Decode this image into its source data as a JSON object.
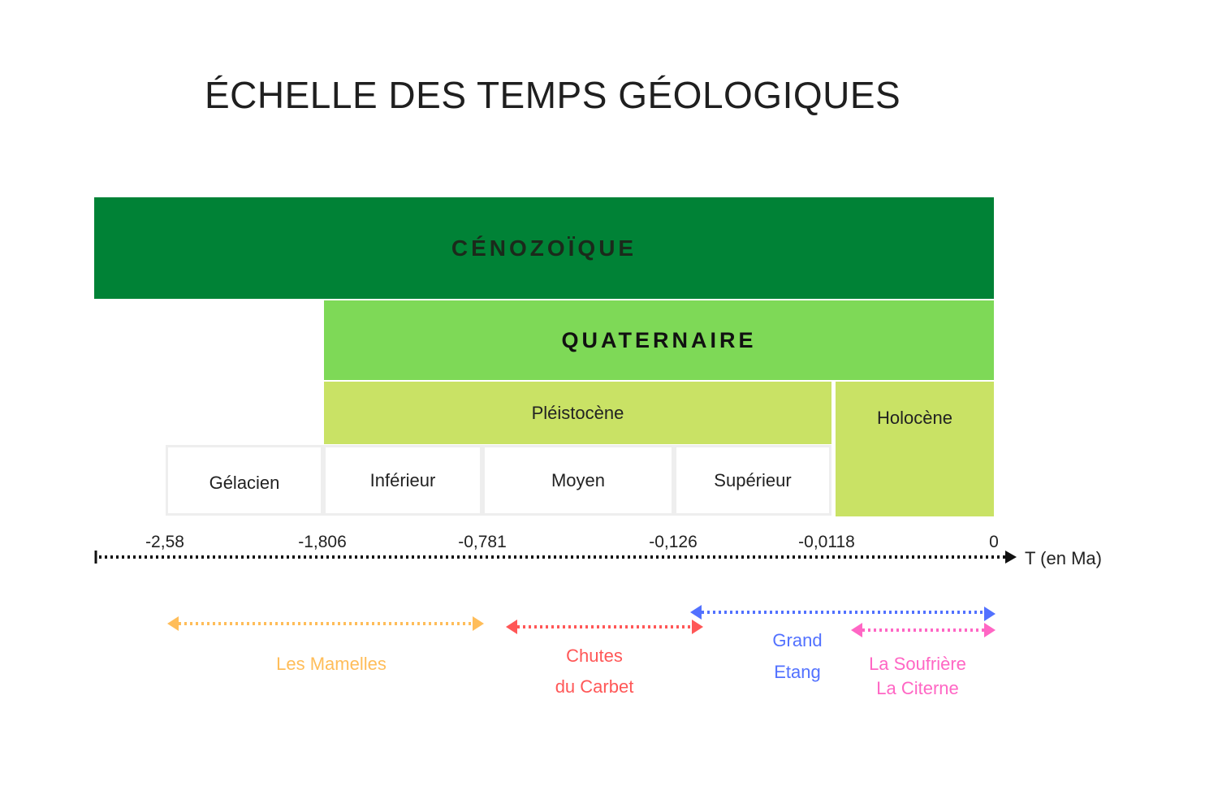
{
  "title": "ÉCHELLE DES TEMPS GÉOLOGIQUES",
  "era": "CÉNOZOÏQUE",
  "period": "QUATERNAIRE",
  "epochs": {
    "pleistocene": "Pléistocène",
    "holocene": "Holocène"
  },
  "stages": [
    "Gélacien",
    "Inférieur",
    "Moyen",
    "Supérieur"
  ],
  "axis": {
    "ticks": [
      "-2,58",
      "-1,806",
      "-0,781",
      "-0,126",
      "-0,0118",
      "0"
    ],
    "unit": "T (en Ma)"
  },
  "formations": [
    {
      "lines": [
        "Les Mamelles"
      ],
      "color": "#ffbd59"
    },
    {
      "lines": [
        "Chutes",
        "du Carbet"
      ],
      "color": "#ff5757"
    },
    {
      "lines": [
        "Grand",
        "Etang"
      ],
      "color": "#5271ff"
    },
    {
      "lines": [
        "La Soufrière",
        "La Citerne"
      ],
      "color": "#ff66c4"
    }
  ],
  "colors": {
    "era": "#008236",
    "period": "#7ed957",
    "epoch": "#c9e265",
    "axis": "#111111"
  }
}
